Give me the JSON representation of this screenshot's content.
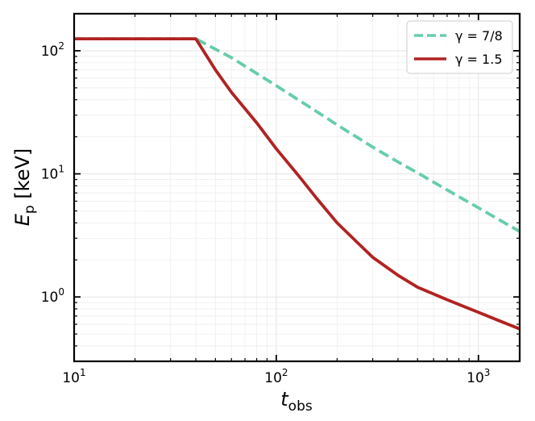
{
  "chart_data": {
    "type": "line",
    "xlabel": {
      "main": "t",
      "sub": "obs"
    },
    "ylabel": {
      "main": "E",
      "sub": "p",
      "unit": " [keV]"
    },
    "xscale": "log",
    "yscale": "log",
    "xlim": [
      10,
      1600
    ],
    "ylim": [
      0.3,
      200
    ],
    "grid": true,
    "legend_position": "top-right",
    "x_ticks": [
      {
        "value": 10,
        "base": "10",
        "exp": "1"
      },
      {
        "value": 100,
        "base": "10",
        "exp": "2"
      },
      {
        "value": 1000,
        "base": "10",
        "exp": "3"
      }
    ],
    "y_ticks": [
      {
        "value": 1,
        "base": "10",
        "exp": "0"
      },
      {
        "value": 10,
        "base": "10",
        "exp": "1"
      },
      {
        "value": 100,
        "base": "10",
        "exp": "2"
      }
    ],
    "series": [
      {
        "name": "γ = 7/8",
        "color": "#66cdaa",
        "style": "dashed",
        "points": [
          [
            10,
            125
          ],
          [
            40,
            125
          ],
          [
            60,
            88
          ],
          [
            100,
            52
          ],
          [
            150,
            34
          ],
          [
            200,
            25
          ],
          [
            300,
            16.5
          ],
          [
            400,
            12.5
          ],
          [
            500,
            10.2
          ],
          [
            700,
            7.4
          ],
          [
            1000,
            5.3
          ],
          [
            1600,
            3.4
          ]
        ]
      },
      {
        "name": "γ = 1.5",
        "color": "#b22222",
        "style": "solid",
        "points": [
          [
            10,
            125
          ],
          [
            40,
            125
          ],
          [
            50,
            70
          ],
          [
            60,
            46
          ],
          [
            80,
            26
          ],
          [
            100,
            16
          ],
          [
            130,
            9.5
          ],
          [
            160,
            6.2
          ],
          [
            200,
            4.0
          ],
          [
            250,
            2.8
          ],
          [
            300,
            2.1
          ],
          [
            400,
            1.5
          ],
          [
            500,
            1.2
          ],
          [
            700,
            0.95
          ],
          [
            1000,
            0.75
          ],
          [
            1300,
            0.63
          ],
          [
            1600,
            0.55
          ]
        ]
      }
    ]
  }
}
